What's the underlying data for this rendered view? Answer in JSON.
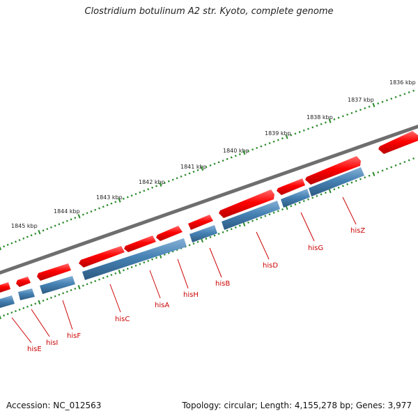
{
  "title": "Clostridium botulinum A2 str. Kyoto, complete genome",
  "footer": {
    "accession": "Accession: NC_012563",
    "summary": "Topology: circular; Length: 4,155,278 bp; Genes: 3,977"
  },
  "colors": {
    "forward_strand": "#ff0000",
    "reverse_strand": "#4682b4",
    "tick": "#2a8a2a",
    "backbone": "#808080",
    "gene_label": "#cc0000"
  },
  "ruler_labels": [
    "1836 kbp",
    "1837 kbp",
    "1838 kbp",
    "1839 kbp",
    "1840 kbp",
    "1841 kbp",
    "1842 kbp",
    "1843 kbp",
    "1844 kbp",
    "1845 kbp"
  ],
  "gene_labels": [
    "hisZ",
    "hisG",
    "hisD",
    "hisB",
    "hisH",
    "hisA",
    "hisC",
    "hisF",
    "hisI",
    "hisE"
  ]
}
